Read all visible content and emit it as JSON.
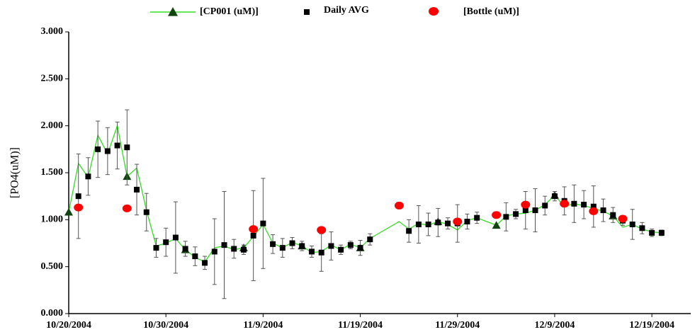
{
  "chart_data": {
    "type": "line",
    "ylabel": "[PO4(uM)]",
    "xlim": [
      "10/20/2004",
      "12/23/2004"
    ],
    "xticks": [
      "10/20/2004",
      "10/30/2004",
      "11/9/2004",
      "11/19/2004",
      "11/29/2004",
      "12/9/2004",
      "12/19/2004"
    ],
    "ylim": [
      0,
      3
    ],
    "yticks": [
      {
        "value": 0,
        "label": "0.000"
      },
      {
        "value": 0.5,
        "label": "0.500"
      },
      {
        "value": 1,
        "label": "1.000"
      },
      {
        "value": 1.5,
        "label": "1.500"
      },
      {
        "value": 2,
        "label": "2.000"
      },
      {
        "value": 2.5,
        "label": "2.500"
      },
      {
        "value": 3,
        "label": "3.000"
      }
    ],
    "series": [
      {
        "name": "[CP001 (uM)]",
        "color": "#33dd22",
        "marker_color": "#114411",
        "x": [
          "10/20/2004",
          "10/21/2004",
          "10/22/2004",
          "10/23/2004",
          "10/24/2004",
          "10/25/2004",
          "10/26/2004",
          "10/27/2004",
          "10/28/2004",
          "10/29/2004",
          "10/30/2004",
          "10/31/2004",
          "11/1/2004",
          "11/2/2004",
          "11/3/2004",
          "11/4/2004",
          "11/5/2004",
          "11/6/2004",
          "11/7/2004",
          "11/8/2004",
          "11/9/2004",
          "11/10/2004",
          "11/11/2004",
          "11/12/2004",
          "11/13/2004",
          "11/14/2004",
          "11/15/2004",
          "11/16/2004",
          "11/17/2004",
          "11/18/2004",
          "11/19/2004",
          "11/20/2004",
          "11/23/2004",
          "11/24/2004",
          "11/25/2004",
          "11/26/2004",
          "11/27/2004",
          "11/28/2004",
          "11/29/2004",
          "11/30/2004",
          "12/1/2004",
          "12/2/2004",
          "12/3/2004",
          "12/4/2004",
          "12/5/2004",
          "12/6/2004",
          "12/7/2004",
          "12/8/2004",
          "12/9/2004",
          "12/10/2004",
          "12/11/2004",
          "12/12/2004",
          "12/13/2004",
          "12/14/2004",
          "12/15/2004",
          "12/16/2004",
          "12/17/2004",
          "12/18/2004",
          "12/19/2004",
          "12/20/2004"
        ],
        "values": [
          1.08,
          1.6,
          1.45,
          1.9,
          1.7,
          2.0,
          1.46,
          1.55,
          1.1,
          0.72,
          0.75,
          0.8,
          0.68,
          0.6,
          0.55,
          0.7,
          0.72,
          0.68,
          0.7,
          0.82,
          0.95,
          0.75,
          0.7,
          0.76,
          0.72,
          0.65,
          0.66,
          0.73,
          0.68,
          0.74,
          0.7,
          0.8,
          0.98,
          0.9,
          0.96,
          0.94,
          0.98,
          0.95,
          0.89,
          0.99,
          1.02,
          0.98,
          0.94,
          1.04,
          1.06,
          1.07,
          1.1,
          1.16,
          1.26,
          1.14,
          1.17,
          1.15,
          1.12,
          1.09,
          1.04,
          0.92,
          0.95,
          0.9,
          0.87,
          0.86
        ]
      },
      {
        "name": "Daily AVG",
        "color": "#000000",
        "x": [
          "10/21/2004",
          "10/22/2004",
          "10/23/2004",
          "10/24/2004",
          "10/25/2004",
          "10/26/2004",
          "10/27/2004",
          "10/28/2004",
          "10/29/2004",
          "10/30/2004",
          "10/31/2004",
          "11/1/2004",
          "11/2/2004",
          "11/3/2004",
          "11/4/2004",
          "11/5/2004",
          "11/6/2004",
          "11/7/2004",
          "11/8/2004",
          "11/9/2004",
          "11/10/2004",
          "11/11/2004",
          "11/12/2004",
          "11/13/2004",
          "11/14/2004",
          "11/15/2004",
          "11/16/2004",
          "11/17/2004",
          "11/18/2004",
          "11/19/2004",
          "11/20/2004",
          "11/24/2004",
          "11/25/2004",
          "11/26/2004",
          "11/27/2004",
          "11/28/2004",
          "11/29/2004",
          "11/30/2004",
          "12/1/2004",
          "12/4/2004",
          "12/5/2004",
          "12/6/2004",
          "12/7/2004",
          "12/8/2004",
          "12/9/2004",
          "12/10/2004",
          "12/11/2004",
          "12/12/2004",
          "12/13/2004",
          "12/14/2004",
          "12/15/2004",
          "12/16/2004",
          "12/17/2004",
          "12/18/2004",
          "12/19/2004",
          "12/20/2004"
        ],
        "values": [
          1.25,
          1.46,
          1.75,
          1.73,
          1.79,
          1.77,
          1.32,
          1.08,
          0.7,
          0.76,
          0.81,
          0.69,
          0.61,
          0.54,
          0.66,
          0.73,
          0.69,
          0.68,
          0.83,
          0.96,
          0.74,
          0.7,
          0.75,
          0.72,
          0.66,
          0.65,
          0.72,
          0.68,
          0.73,
          0.7,
          0.79,
          0.88,
          0.95,
          0.95,
          0.97,
          0.96,
          0.96,
          0.98,
          1.02,
          1.03,
          1.06,
          1.1,
          1.1,
          1.15,
          1.25,
          1.2,
          1.17,
          1.16,
          1.14,
          1.1,
          1.05,
          0.99,
          0.95,
          0.91,
          0.86,
          0.86
        ],
        "errors": [
          0.45,
          0.2,
          0.3,
          0.25,
          0.25,
          0.4,
          0.27,
          0.2,
          0.1,
          0.15,
          0.38,
          0.08,
          0.1,
          0.07,
          0.35,
          0.57,
          0.1,
          0.05,
          0.48,
          0.48,
          0.1,
          0.1,
          0.06,
          0.05,
          0.06,
          0.2,
          0.15,
          0.05,
          0.04,
          0.08,
          0.06,
          0.12,
          0.2,
          0.12,
          0.15,
          0.06,
          0.2,
          0.08,
          0.06,
          0.15,
          0.05,
          0.2,
          0.23,
          0.1,
          0.05,
          0.15,
          0.2,
          0.15,
          0.22,
          0.12,
          0.08,
          0.05,
          0.16,
          0.06,
          0.04,
          0.03
        ]
      },
      {
        "name": "[Bottle (uM)]",
        "color": "#ff0000",
        "x": [
          "10/21/2004",
          "10/26/2004",
          "11/8/2004",
          "11/15/2004",
          "11/23/2004",
          "11/29/2004",
          "12/3/2004",
          "12/6/2004",
          "12/10/2004",
          "12/13/2004",
          "12/16/2004"
        ],
        "values": [
          1.13,
          1.12,
          0.9,
          0.89,
          1.15,
          0.98,
          1.05,
          1.16,
          1.17,
          1.09,
          1.01
        ]
      }
    ]
  }
}
